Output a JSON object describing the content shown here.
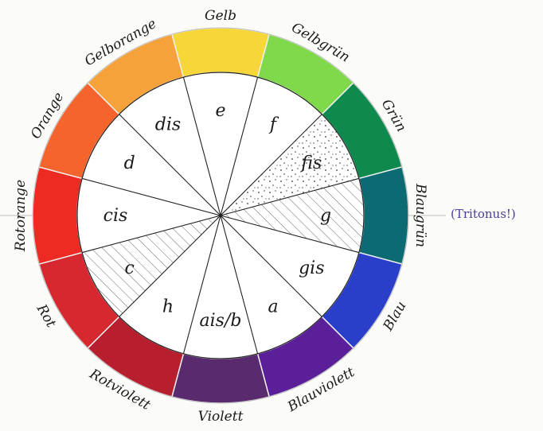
{
  "segments": [
    {
      "color": "#f7d63a",
      "note": "e",
      "name": "Gelb"
    },
    {
      "color": "#7fd94a",
      "note": "f",
      "name": "Gelbgrün"
    },
    {
      "color": "#0f8a4e",
      "note": "fis",
      "name": "Grün"
    },
    {
      "color": "#0b6a72",
      "note": "g",
      "name": "Blaugrün"
    },
    {
      "color": "#2a3fc9",
      "note": "gis",
      "name": "Blau"
    },
    {
      "color": "#5b1f9a",
      "note": "a",
      "name": "Blauviolett"
    },
    {
      "color": "#5a2a6e",
      "note": "ais/b",
      "name": "Violett"
    },
    {
      "color": "#b81f2e",
      "note": "h",
      "name": "Rotviolett"
    },
    {
      "color": "#d7282f",
      "note": "c",
      "name": "Rot"
    },
    {
      "color": "#ee2b22",
      "note": "cis",
      "name": "Rotorange"
    },
    {
      "color": "#f4642c",
      "note": "d",
      "name": "Orange"
    },
    {
      "color": "#f6a23a",
      "note": "dis",
      "name": "Gelborange"
    }
  ],
  "annotation": "(Tritonus!)",
  "hatch_segment_indices": [
    3,
    8
  ],
  "stipple_segment_index": 2
}
